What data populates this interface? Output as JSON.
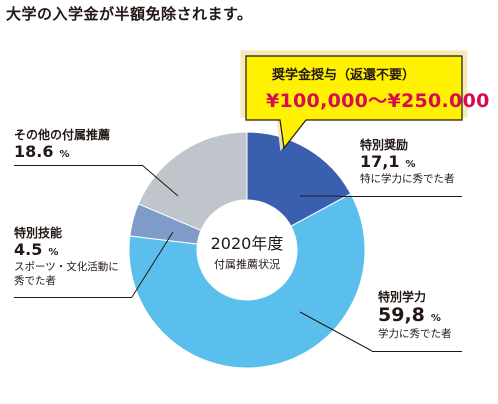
{
  "headline": "大学の入学金が半額免除されます。",
  "callout": {
    "title": "奨学金授与（返還不要）",
    "amount": "¥100,000〜¥250.000"
  },
  "center": {
    "year": "2020年度",
    "subtitle": "付属推薦状況"
  },
  "colors": {
    "tokubetsu_shourei": "#3a5fae",
    "tokubetsu_gakuryoku": "#5bbfee",
    "tokubetsu_gino": "#7f9cc8",
    "sonota": "#c0c5cb",
    "callout_fill": "#fff100",
    "amount_text": "#d60b52"
  },
  "chart_data": {
    "type": "pie",
    "donut": true,
    "series": [
      {
        "values": [
          {
            "label": "特別奨励",
            "value": 17.1,
            "display": "17,1",
            "unit": "%",
            "note": "特に学力に秀でた者",
            "color": "#3a5fae"
          },
          {
            "label": "特別学力",
            "value": 59.8,
            "display": "59,8",
            "unit": "%",
            "note": "学力に秀でた者",
            "color": "#5bbfee"
          },
          {
            "label": "特別技能",
            "value": 4.5,
            "display": "4.5",
            "unit": "%",
            "note": "スポーツ・文化活動に\n秀でた者",
            "color": "#7f9cc8"
          },
          {
            "label": "その他の付属推薦",
            "value": 18.6,
            "display": "18.6",
            "unit": "%",
            "note": "",
            "color": "#c0c5cb"
          }
        ]
      }
    ]
  }
}
